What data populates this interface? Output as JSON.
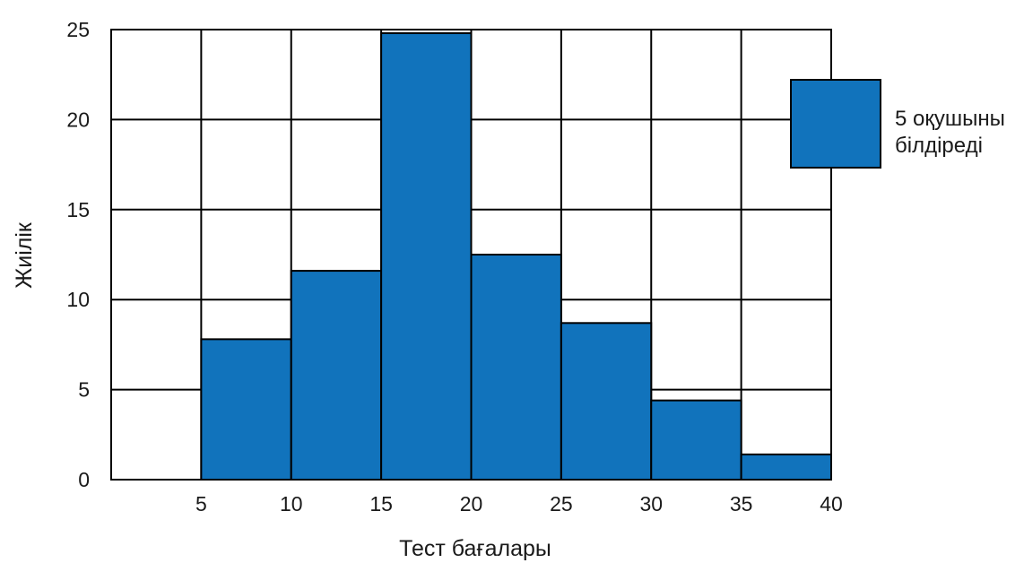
{
  "chart_data": {
    "type": "bar",
    "bins": [
      [
        5,
        10
      ],
      [
        10,
        15
      ],
      [
        15,
        20
      ],
      [
        20,
        25
      ],
      [
        25,
        30
      ],
      [
        30,
        35
      ],
      [
        35,
        40
      ]
    ],
    "values": [
      7.8,
      11.6,
      24.8,
      12.5,
      8.7,
      4.4,
      1.4
    ],
    "x_ticks": [
      "5",
      "10",
      "15",
      "20",
      "25",
      "30",
      "35",
      "40"
    ],
    "y_ticks": [
      "0",
      "5",
      "10",
      "15",
      "20",
      "25"
    ],
    "xlim": [
      0,
      40
    ],
    "ylim": [
      0,
      25
    ],
    "xlabel": "Тест бағалары",
    "ylabel": "Жиілік",
    "grid": true,
    "legend": {
      "position": "right",
      "lines": [
        "5 оқушыны",
        "білдіреді"
      ]
    },
    "colors": {
      "bar": "#1173bc",
      "grid": "#000000"
    }
  }
}
